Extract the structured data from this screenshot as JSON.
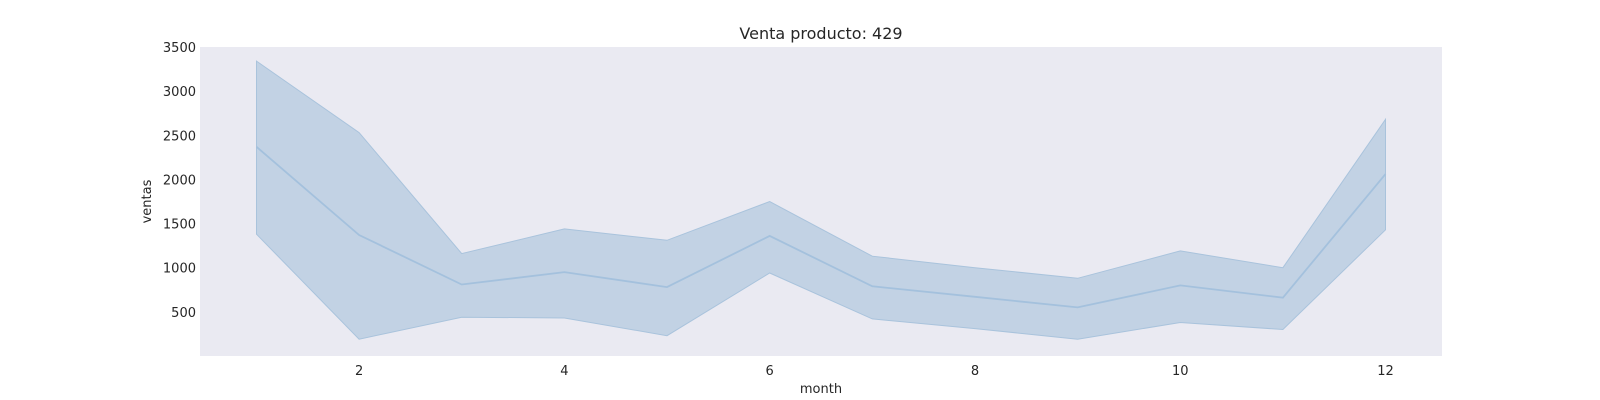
{
  "chart_data": {
    "type": "line",
    "title": "Venta producto: 429",
    "xlabel": "month",
    "ylabel": "ventas",
    "xlim": [
      0.45,
      12.55
    ],
    "ylim": [
      0,
      3500
    ],
    "xticks": [
      2,
      4,
      6,
      8,
      10,
      12
    ],
    "yticks": [
      500,
      1000,
      1500,
      2000,
      2500,
      3000,
      3500
    ],
    "grid": false,
    "series": [
      {
        "x": [
          1,
          2,
          3,
          4,
          5,
          6,
          7,
          8,
          9,
          10,
          11,
          12
        ],
        "values": [
          2370,
          1370,
          810,
          950,
          780,
          1360,
          790,
          670,
          550,
          800,
          660,
          2060
        ],
        "ci_upper": [
          3340,
          2530,
          1160,
          1440,
          1310,
          1750,
          1130,
          1000,
          880,
          1190,
          1000,
          2680
        ],
        "ci_lower": [
          1380,
          190,
          440,
          430,
          230,
          940,
          420,
          310,
          190,
          380,
          300,
          1430
        ]
      }
    ],
    "colors": {
      "background": "#eaeaf2",
      "line": "#a4c1dd",
      "band": "#c2d2e4",
      "band_edge": "#a9c3dc"
    }
  }
}
